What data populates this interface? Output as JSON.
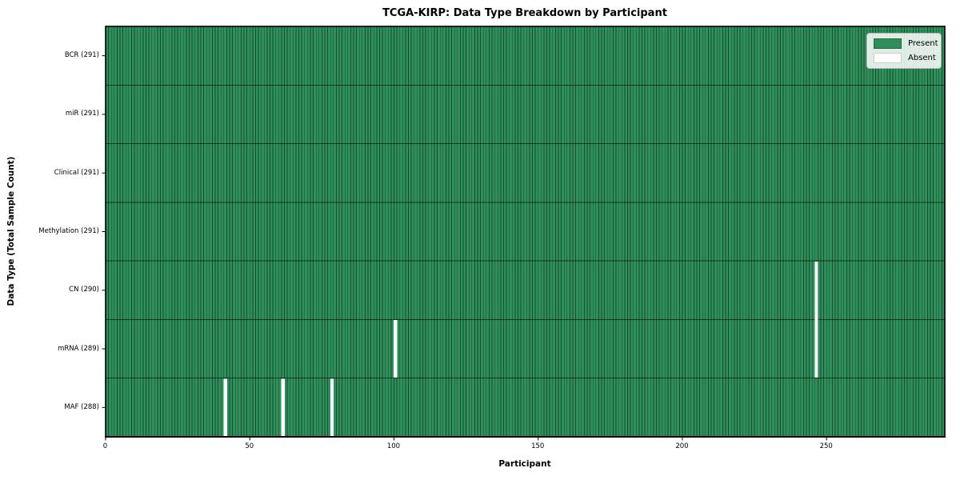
{
  "figure": {
    "title": "TCGA-KIRP: Data Type Breakdown by Participant",
    "xlabel": "Participant",
    "ylabel": "Data Type (Total Sample Count)"
  },
  "legend": {
    "items": [
      {
        "label": "Present",
        "color": "#2e8f5a"
      },
      {
        "label": "Absent",
        "color": "#ffffff"
      }
    ]
  },
  "chart_data": {
    "type": "heatmap",
    "title": "TCGA-KIRP: Data Type Breakdown by Participant",
    "xlabel": "Participant",
    "ylabel": "Data Type (Total Sample Count)",
    "n_participants": 291,
    "x_range": [
      0,
      291
    ],
    "x_ticks": [
      0,
      50,
      100,
      150,
      200,
      250
    ],
    "grid": "cell-edges",
    "legend_position": "upper right",
    "legend": [
      {
        "label": "Present",
        "color": "#2e8f5a"
      },
      {
        "label": "Absent",
        "color": "#ffffff"
      }
    ],
    "colors": {
      "present": "#2e8f5a",
      "absent": "#ffffff",
      "cell_edge": "rgba(0,0,0,0.45)",
      "row_divider": "rgba(0,0,0,0.6)",
      "spine": "#000000"
    },
    "rows": [
      {
        "label": "BCR (291)",
        "data_type": "BCR",
        "total_samples": 291,
        "absent_participant_indices": []
      },
      {
        "label": "miR (291)",
        "data_type": "miR",
        "total_samples": 291,
        "absent_participant_indices": []
      },
      {
        "label": "Clinical (291)",
        "data_type": "Clinical",
        "total_samples": 291,
        "absent_participant_indices": []
      },
      {
        "label": "Methylation (291)",
        "data_type": "Methylation",
        "total_samples": 291,
        "absent_participant_indices": []
      },
      {
        "label": "CN (290)",
        "data_type": "CN",
        "total_samples": 290,
        "absent_participant_indices": [
          246
        ]
      },
      {
        "label": "mRNA (289)",
        "data_type": "mRNA",
        "total_samples": 289,
        "absent_participant_indices": [
          100,
          246
        ]
      },
      {
        "label": "MAF (288)",
        "data_type": "MAF",
        "total_samples": 288,
        "absent_participant_indices": [
          41,
          61,
          78
        ]
      }
    ]
  }
}
